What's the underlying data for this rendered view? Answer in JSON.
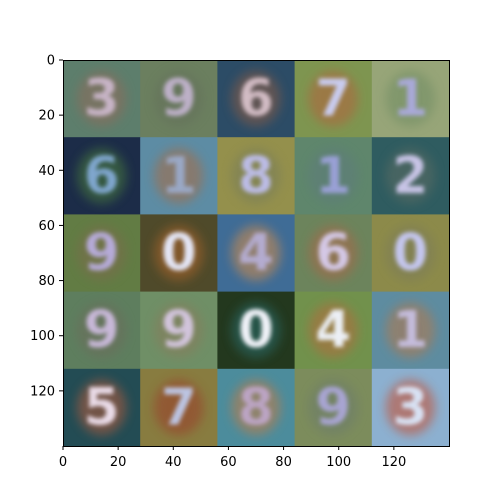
{
  "figure": {
    "x_ticks": [
      "0",
      "20",
      "40",
      "60",
      "80",
      "100",
      "120"
    ],
    "y_ticks": [
      "0",
      "20",
      "40",
      "60",
      "80",
      "100",
      "120"
    ],
    "image_extent": [
      0,
      140
    ],
    "grid": {
      "rows": 5,
      "cols": 5,
      "tiles": [
        {
          "bg": "#5d7e6c",
          "ink": "#c7b4c6",
          "accent": "#8e6c5c",
          "glyph": "3"
        },
        {
          "bg": "#6b7f5f",
          "ink": "#bdb0c8",
          "accent": "#64705a",
          "glyph": "9"
        },
        {
          "bg": "#2c4c66",
          "ink": "#d2bcc4",
          "accent": "#8a5c44",
          "glyph": "6"
        },
        {
          "bg": "#7e9550",
          "ink": "#c9ccef",
          "accent": "#b3643c",
          "glyph": "7"
        },
        {
          "bg": "#97a578",
          "ink": "#a9a9d8",
          "accent": "#6f8c64",
          "glyph": "1"
        },
        {
          "bg": "#1c2c48",
          "ink": "#7fa6cd",
          "accent": "#4a7c3c",
          "glyph": "6"
        },
        {
          "bg": "#5d8ca4",
          "ink": "#9aa8c6",
          "accent": "#a86c44",
          "glyph": "1"
        },
        {
          "bg": "#94904c",
          "ink": "#bcbce6",
          "accent": "#787d5a",
          "glyph": "8"
        },
        {
          "bg": "#5f866c",
          "ink": "#9aa0d6",
          "accent": "#5d7c7c",
          "glyph": "1"
        },
        {
          "bg": "#2f5c60",
          "ink": "#c8c4e6",
          "accent": "#5c6c64",
          "glyph": "2"
        },
        {
          "bg": "#627c44",
          "ink": "#b6aad8",
          "accent": "#7a6c4c",
          "glyph": "9"
        },
        {
          "bg": "#4f4a2a",
          "ink": "#e4e6f6",
          "accent": "#a8642c",
          "glyph": "0"
        },
        {
          "bg": "#3f6c96",
          "ink": "#b4acd0",
          "accent": "#d28c4c",
          "glyph": "4"
        },
        {
          "bg": "#6c845c",
          "ink": "#d4c8e6",
          "accent": "#a8684a",
          "glyph": "6"
        },
        {
          "bg": "#8c8a4a",
          "ink": "#c4c6ee",
          "accent": "#7b7c5a",
          "glyph": "0"
        },
        {
          "bg": "#5e7e5e",
          "ink": "#c8b8d8",
          "accent": "#6c6c5c",
          "glyph": "9"
        },
        {
          "bg": "#6f8f66",
          "ink": "#d2c4dc",
          "accent": "#887c5c",
          "glyph": "9"
        },
        {
          "bg": "#23381e",
          "ink": "#f0f2f8",
          "accent": "#2c6c6c",
          "glyph": "0"
        },
        {
          "bg": "#71914c",
          "ink": "#ecf0f6",
          "accent": "#b46c3c",
          "glyph": "4"
        },
        {
          "bg": "#5e8ca0",
          "ink": "#c4bcdc",
          "accent": "#b4784c",
          "glyph": "1"
        },
        {
          "bg": "#234c54",
          "ink": "#eadce8",
          "accent": "#b45c3c",
          "glyph": "5"
        },
        {
          "bg": "#887c40",
          "ink": "#bcc4e2",
          "accent": "#9a3c2c",
          "glyph": "7"
        },
        {
          "bg": "#4c8c9c",
          "ink": "#bca4c4",
          "accent": "#c47c44",
          "glyph": "8"
        },
        {
          "bg": "#7c8c5c",
          "ink": "#a8a4d2",
          "accent": "#6c7c6c",
          "glyph": "9"
        },
        {
          "bg": "#8cb0d0",
          "ink": "#d8e2f4",
          "accent": "#c84c2c",
          "glyph": "3"
        }
      ]
    }
  }
}
